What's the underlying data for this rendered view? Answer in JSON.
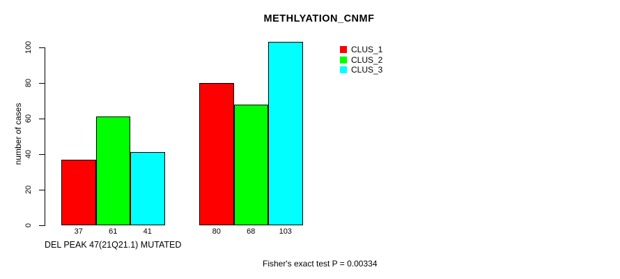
{
  "chart_data": {
    "type": "bar",
    "title": "METHLYATION_CNMF",
    "ylabel": "number of cases",
    "xlabel": "DEL PEAK 47(21Q21.1) MUTATED",
    "annotation": "Fisher's exact test P = 0.00334",
    "categories": [
      "",
      ""
    ],
    "series": [
      {
        "name": "CLUS_1",
        "color": "#ff0000",
        "values": [
          37,
          80
        ]
      },
      {
        "name": "CLUS_2",
        "color": "#00ff00",
        "values": [
          61,
          68
        ]
      },
      {
        "name": "CLUS_3",
        "color": "#00ffff",
        "values": [
          41,
          103
        ]
      }
    ],
    "y_ticks": [
      0,
      20,
      40,
      60,
      80,
      100
    ],
    "ylim": [
      0,
      103
    ],
    "grid": false,
    "legend_position": "top-right",
    "value_labels_shown": true,
    "bar_border_color": "#000000",
    "background_color": "#ffffff"
  }
}
